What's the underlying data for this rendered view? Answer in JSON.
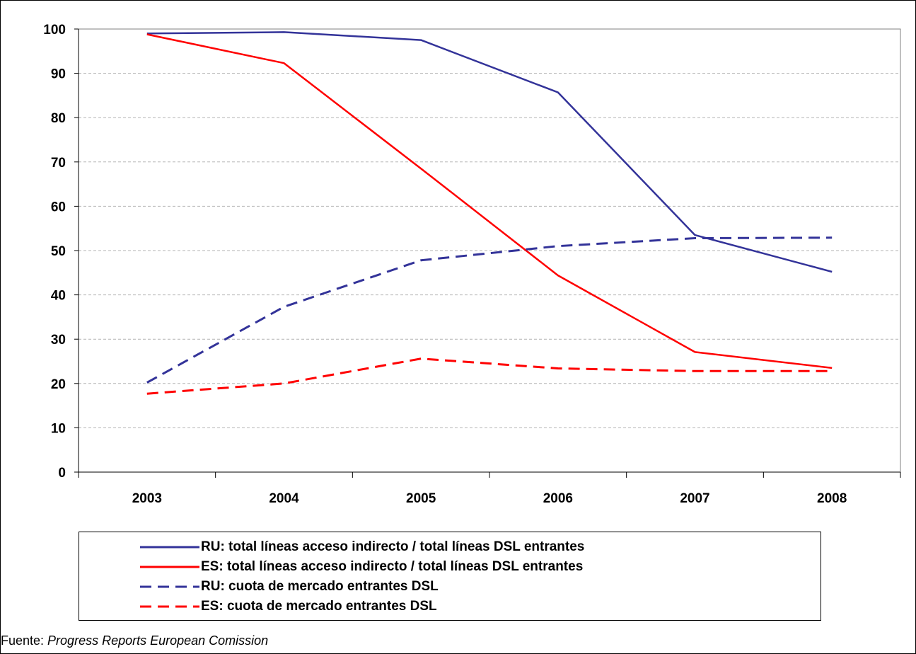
{
  "chart_data": {
    "type": "line",
    "categories": [
      "2003",
      "2004",
      "2005",
      "2006",
      "2007",
      "2008"
    ],
    "ylim": [
      0,
      100
    ],
    "yticks": [
      0,
      10,
      20,
      30,
      40,
      50,
      60,
      70,
      80,
      90,
      100
    ],
    "grid": true,
    "legend_position": "bottom",
    "series": [
      {
        "name": "RU: total líneas acceso indirecto / total líneas DSL entrantes",
        "values": [
          99,
          99.3,
          97.5,
          85.7,
          53.5,
          45.2
        ],
        "color": "#333399",
        "style": "solid"
      },
      {
        "name": "ES: total líneas acceso indirecto / total líneas DSL entrantes",
        "values": [
          98.8,
          92.3,
          68.5,
          44.4,
          27.1,
          23.5
        ],
        "color": "#ff0000",
        "style": "solid"
      },
      {
        "name": "RU: cuota de mercado entrantes DSL",
        "values": [
          20.2,
          37.3,
          47.8,
          51,
          52.8,
          52.9
        ],
        "color": "#333399",
        "style": "dashed"
      },
      {
        "name": "ES: cuota de mercado entrantes DSL",
        "values": [
          17.7,
          20,
          25.6,
          23.4,
          22.8,
          22.8
        ],
        "color": "#ff0000",
        "style": "dashed"
      }
    ]
  },
  "source": {
    "prefix": "Fuente: ",
    "title": "Progress Reports European Comission"
  }
}
